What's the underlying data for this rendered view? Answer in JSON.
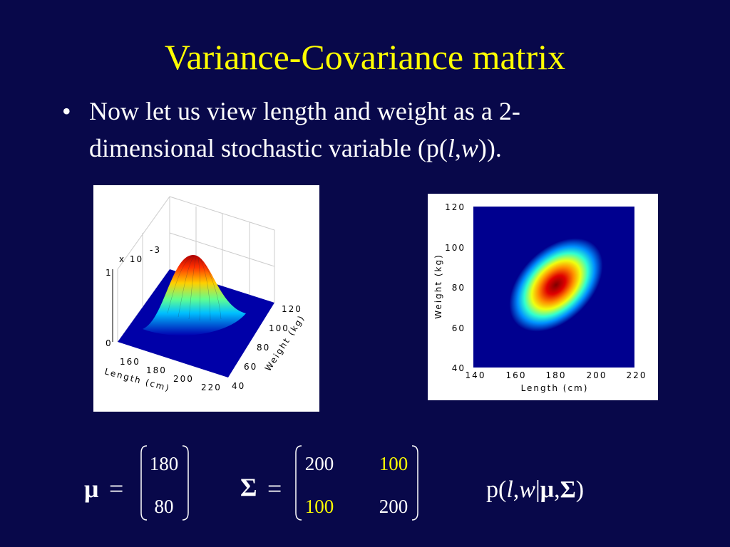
{
  "slide": {
    "title": "Variance-Covariance matrix",
    "bullet": {
      "mark": "•",
      "line1": "Now let us view length and weight as a 2-",
      "line2": [
        "dimensional stochastic variable (p(",
        "l",
        ",",
        "w",
        "))."
      ]
    },
    "surface_plot": {
      "z_scale": "x 10",
      "z_exponent": "-3",
      "z_ticks": [
        "0",
        "1"
      ],
      "x_ticks": [
        "160",
        "180",
        "200",
        "220"
      ],
      "x_label": "Length (cm)",
      "y_ticks": [
        "40",
        "60",
        "80",
        "100",
        "120"
      ],
      "y_label": "Weight (kg)"
    },
    "heatmap": {
      "x_ticks": [
        "140",
        "160",
        "180",
        "200",
        "220"
      ],
      "x_label": "Length (cm)",
      "y_ticks": [
        "40",
        "60",
        "80",
        "100",
        "120"
      ],
      "y_label": "Weight (kg)"
    },
    "mean": {
      "symbol": "μ",
      "equals": "=",
      "entries": [
        "180",
        "80"
      ]
    },
    "covariance": {
      "symbol": "Σ",
      "equals": "=",
      "rows": [
        [
          "200",
          "100"
        ],
        [
          "100",
          "200"
        ]
      ]
    },
    "density": [
      "p(",
      "l",
      ",",
      "w",
      "|",
      "μ",
      ",",
      "Σ",
      ")"
    ]
  }
}
